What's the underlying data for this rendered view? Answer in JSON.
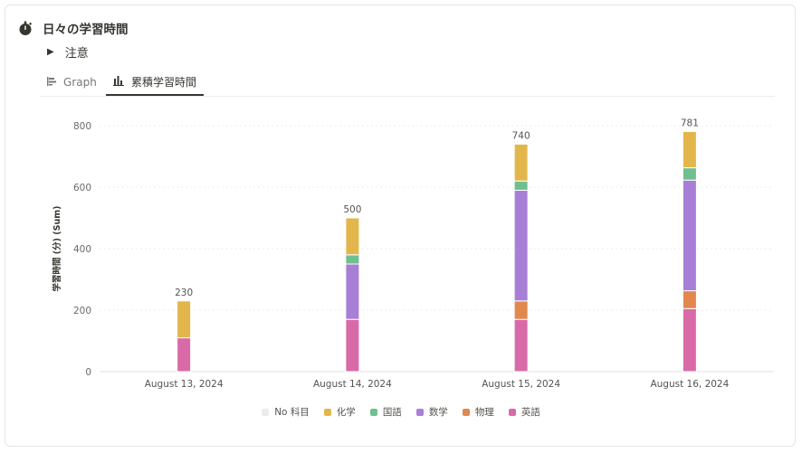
{
  "header": {
    "title": "日々の学習時間",
    "icon": "timer-icon"
  },
  "toggle": {
    "label": "注意"
  },
  "tabs": [
    {
      "label": "Graph",
      "icon": "horizontal-bar-icon",
      "active": false
    },
    {
      "label": "累積学習時間",
      "icon": "bar-chart-icon",
      "active": true
    }
  ],
  "chart_data": {
    "type": "bar",
    "stacked": true,
    "categories": [
      "August 13, 2024",
      "August 14, 2024",
      "August 15, 2024",
      "August 16, 2024"
    ],
    "ylabel": "学習時間 (分) (Sum)",
    "ylim": [
      0,
      800
    ],
    "yticks": [
      0,
      200,
      400,
      600,
      800
    ],
    "grid": true,
    "legend_position": "bottom",
    "totals": [
      230,
      500,
      740,
      781
    ],
    "series": [
      {
        "name": "No 科目",
        "color": "#ececea",
        "values": [
          0,
          0,
          0,
          0
        ]
      },
      {
        "name": "英語",
        "color": "#d96aa8",
        "values": [
          110,
          170,
          170,
          205
        ]
      },
      {
        "name": "物理",
        "color": "#e1884e",
        "values": [
          0,
          0,
          60,
          58
        ]
      },
      {
        "name": "数学",
        "color": "#a87fd6",
        "values": [
          0,
          180,
          360,
          360
        ]
      },
      {
        "name": "国語",
        "color": "#6fbf91",
        "values": [
          0,
          30,
          30,
          40
        ]
      },
      {
        "name": "化学",
        "color": "#e2b64a",
        "values": [
          120,
          120,
          120,
          118
        ]
      }
    ],
    "legend_order": [
      "No 科目",
      "化学",
      "国語",
      "数学",
      "物理",
      "英語"
    ]
  }
}
